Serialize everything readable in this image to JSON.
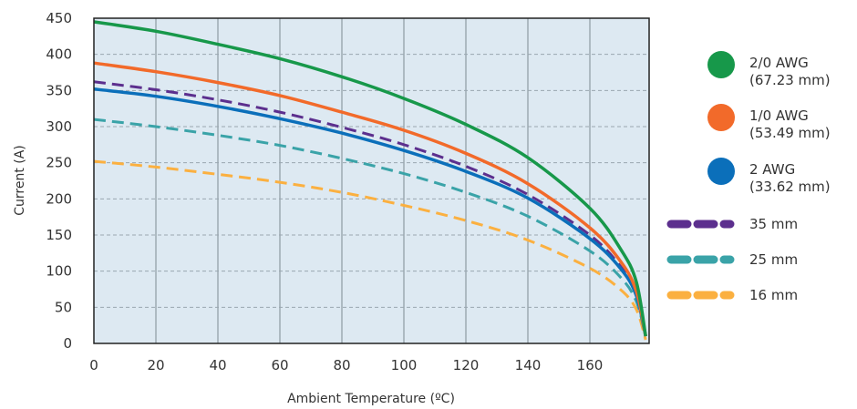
{
  "chart_data": {
    "type": "line",
    "title": "",
    "xlabel": "Ambient Temperature (ºC)",
    "ylabel": "Current (A)",
    "xlim": [
      0,
      180
    ],
    "ylim": [
      0,
      450
    ],
    "x_ticks": [
      0,
      20,
      40,
      60,
      80,
      100,
      120,
      140,
      160
    ],
    "y_ticks": [
      0,
      50,
      100,
      150,
      200,
      250,
      300,
      350,
      400,
      450
    ],
    "grid": {
      "vertical": "solid",
      "horizontal": "dashed"
    },
    "background": "#dde9f2",
    "legend_position": "right",
    "x": [
      0,
      20,
      40,
      60,
      80,
      100,
      120,
      140,
      160,
      170,
      175,
      178
    ],
    "series": [
      {
        "name": "2/0 AWG",
        "detail": "(67.23 mm)",
        "style": "solid",
        "color": "#17984a",
        "values": [
          445,
          432,
          414,
          394,
          369,
          339,
          303,
          257,
          187,
          130,
          85,
          10
        ]
      },
      {
        "name": "1/0 AWG",
        "detail": "(53.49 mm)",
        "style": "solid",
        "color": "#f26a2a",
        "values": [
          388,
          376,
          361,
          343,
          320,
          295,
          263,
          221,
          160,
          113,
          72,
          10
        ]
      },
      {
        "name": "2 AWG",
        "detail": "(33.62 mm)",
        "style": "solid",
        "color": "#0b6fba",
        "values": [
          352,
          342,
          328,
          311,
          291,
          267,
          238,
          201,
          145,
          103,
          66,
          10
        ]
      },
      {
        "name": "35 mm",
        "detail": "",
        "style": "dashed",
        "color": "#5c2f8e",
        "values": [
          362,
          351,
          337,
          320,
          299,
          275,
          245,
          206,
          150,
          106,
          68,
          10
        ]
      },
      {
        "name": "25 mm",
        "detail": "",
        "style": "dashed",
        "color": "#3aa3a8",
        "values": [
          310,
          300,
          288,
          274,
          256,
          235,
          209,
          176,
          128,
          91,
          58,
          10
        ]
      },
      {
        "name": "16 mm",
        "detail": "",
        "style": "dashed",
        "color": "#fbb040",
        "values": [
          252,
          244,
          234,
          223,
          209,
          191,
          170,
          143,
          104,
          74,
          47,
          5
        ]
      }
    ]
  }
}
